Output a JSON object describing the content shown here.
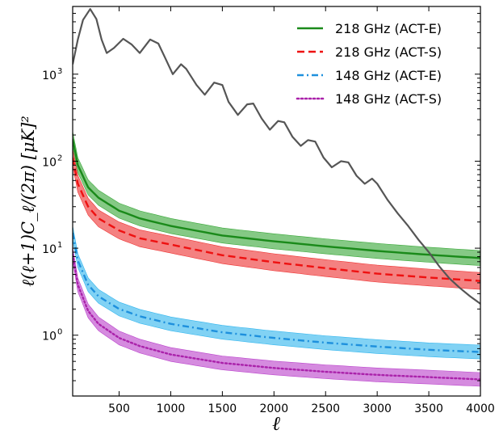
{
  "chart_data": {
    "type": "line",
    "xlabel": "ℓ",
    "ylabel": "ℓ(ℓ+1)C_ℓ/(2π) [μK]²",
    "xlim": [
      50,
      4000
    ],
    "ylim": [
      0.2,
      6000
    ],
    "yscale": "log",
    "grid": false,
    "legend_position": "top-right",
    "x_ticks": [
      "500",
      "1000",
      "1500",
      "2000",
      "2500",
      "3000",
      "3500",
      "4000"
    ],
    "y_tick_bases": [
      "10",
      "10",
      "10",
      "10"
    ],
    "y_tick_exponents": [
      "0",
      "1",
      "2",
      "3"
    ],
    "series": [
      {
        "name": "218 GHz (ACT-E)",
        "color": "#1a8a1a",
        "band_color": "#3aa83a",
        "style": "solid",
        "x": [
          50,
          100,
          200,
          300,
          500,
          700,
          1000,
          1500,
          2000,
          2500,
          3000,
          3500,
          4000
        ],
        "values": [
          180,
          90,
          50,
          38,
          27,
          22,
          18,
          14,
          12,
          10.5,
          9.3,
          8.4,
          7.7
        ],
        "band_factor": 1.22
      },
      {
        "name": "218 GHz (ACT-S)",
        "color": "#ee1111",
        "band_color": "#ee3333",
        "style": "dashed",
        "x": [
          50,
          100,
          200,
          300,
          500,
          700,
          1000,
          1500,
          2000,
          2500,
          3000,
          3500,
          4000
        ],
        "values": [
          110,
          55,
          30,
          22,
          16,
          13,
          11,
          8.3,
          6.9,
          5.9,
          5.1,
          4.6,
          4.2
        ],
        "band_factor": 1.25
      },
      {
        "name": "148 GHz (ACT-E)",
        "color": "#1e90dd",
        "band_color": "#33b6ee",
        "style": "dashdot",
        "x": [
          50,
          100,
          200,
          300,
          500,
          700,
          1000,
          1500,
          2000,
          2500,
          3000,
          3500,
          4000
        ],
        "values": [
          15,
          7.2,
          3.8,
          2.8,
          2.0,
          1.65,
          1.35,
          1.08,
          0.93,
          0.82,
          0.74,
          0.68,
          0.64
        ],
        "band_factor": 1.2
      },
      {
        "name": "148 GHz (ACT-S)",
        "color": "#aa22aa",
        "band_color": "#bb44cc",
        "style": "dotted",
        "x": [
          50,
          100,
          200,
          300,
          500,
          700,
          1000,
          1500,
          2000,
          2500,
          3000,
          3500,
          4000
        ],
        "values": [
          8.5,
          3.8,
          1.9,
          1.35,
          0.93,
          0.75,
          0.6,
          0.48,
          0.42,
          0.38,
          0.35,
          0.33,
          0.31
        ],
        "band_factor": 1.2
      },
      {
        "color": "#555555",
        "style": "solid",
        "x": [
          50,
          100,
          150,
          220,
          280,
          330,
          380,
          450,
          540,
          620,
          700,
          800,
          880,
          950,
          1020,
          1100,
          1150,
          1250,
          1330,
          1420,
          1500,
          1560,
          1650,
          1740,
          1800,
          1880,
          1960,
          2040,
          2100,
          2180,
          2260,
          2330,
          2400,
          2480,
          2560,
          2650,
          2720,
          2800,
          2880,
          2950,
          3000,
          3100,
          3200,
          3300,
          3400,
          3500,
          3600,
          3700,
          3800,
          3900,
          4000
        ],
        "values": [
          1300,
          2500,
          4200,
          5600,
          4300,
          2500,
          1750,
          2000,
          2550,
          2200,
          1750,
          2500,
          2250,
          1500,
          1000,
          1300,
          1150,
          750,
          580,
          800,
          750,
          480,
          340,
          450,
          460,
          310,
          230,
          290,
          280,
          190,
          150,
          175,
          168,
          110,
          85,
          100,
          97,
          68,
          55,
          63,
          55,
          36,
          25,
          18,
          12.5,
          9,
          6.2,
          4.5,
          3.5,
          2.8,
          2.3
        ]
      }
    ]
  }
}
